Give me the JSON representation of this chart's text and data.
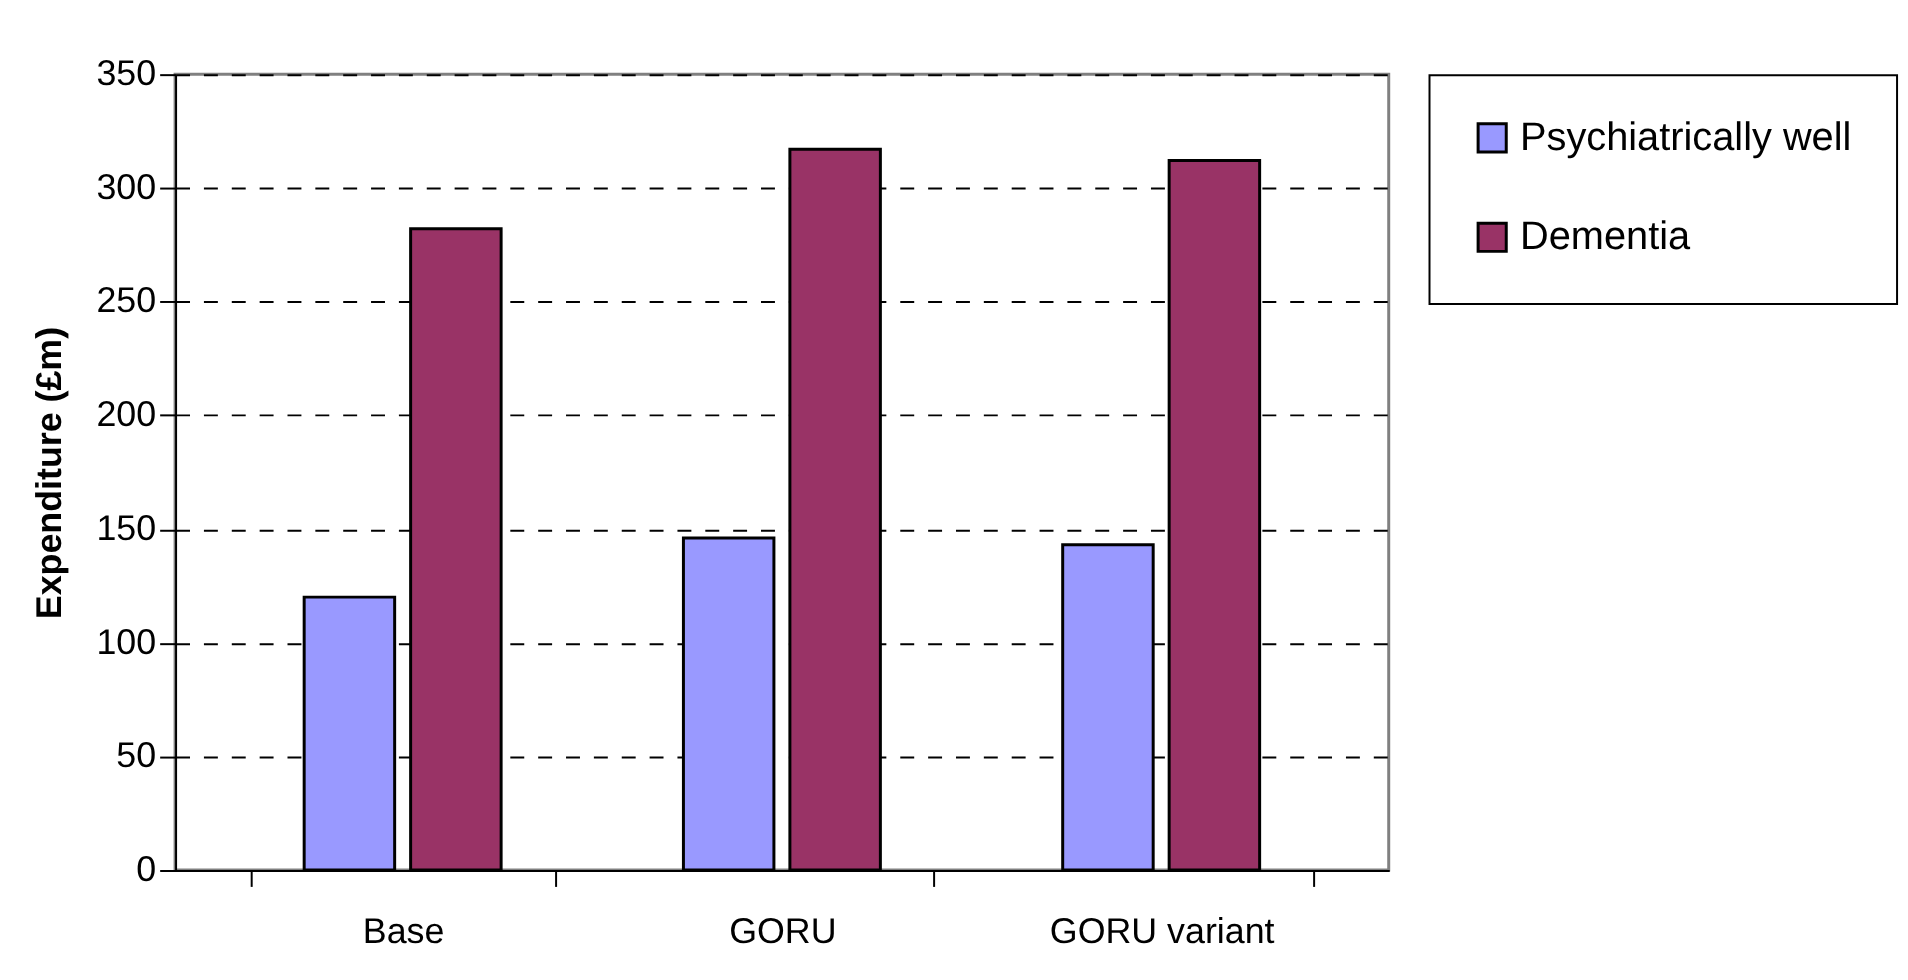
{
  "chart_data": {
    "type": "bar",
    "ylabel": "Expenditure (£m)",
    "categories": [
      "Base",
      "GORU",
      "GORU variant"
    ],
    "series": [
      {
        "name": "Psychiatrically well",
        "color": "#9999ff",
        "values": [
          120,
          146,
          143
        ]
      },
      {
        "name": "Dementia",
        "color": "#993366",
        "values": [
          282,
          317,
          312
        ]
      }
    ],
    "ylim": [
      0,
      350
    ],
    "yticks": [
      0,
      50,
      100,
      150,
      200,
      250,
      300,
      350
    ],
    "grid": "y",
    "legend": "right"
  }
}
